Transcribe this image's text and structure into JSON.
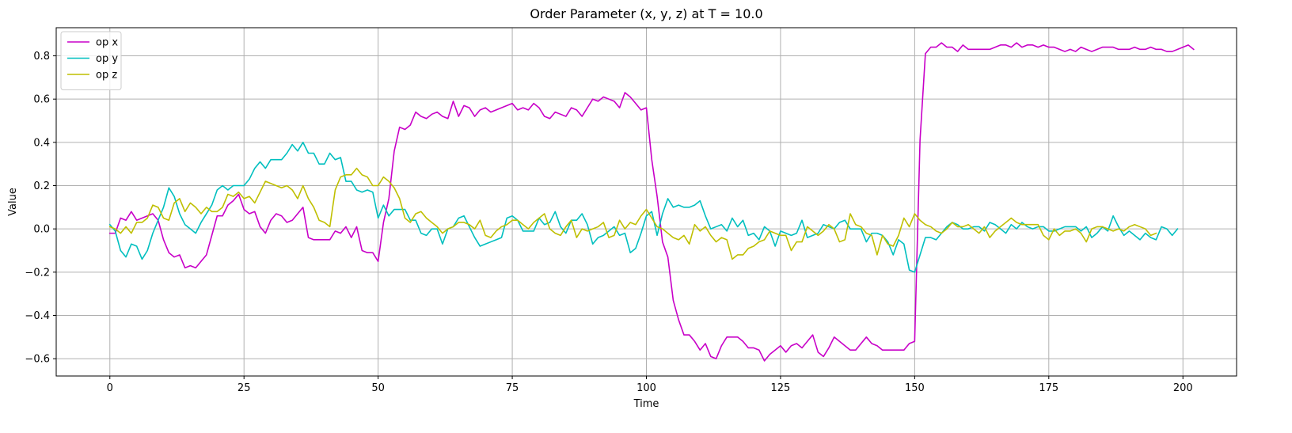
{
  "chart_data": {
    "type": "line",
    "title": "Order Parameter (x, y, z) at T = 10.0",
    "xlabel": "Time",
    "ylabel": "Value",
    "xlim": [
      -10,
      210
    ],
    "ylim": [
      -0.68,
      0.93
    ],
    "xticks": [
      0,
      25,
      50,
      75,
      100,
      125,
      150,
      175,
      200
    ],
    "yticks": [
      -0.6,
      -0.4,
      -0.2,
      0.0,
      0.2,
      0.4,
      0.6,
      0.8
    ],
    "ytick_labels": [
      "−0.6",
      "−0.4",
      "−0.2",
      "0.0",
      "0.2",
      "0.4",
      "0.6",
      "0.8"
    ],
    "grid": true,
    "legend_position": "top-left",
    "series": [
      {
        "name": "op x",
        "color": "#c800c8",
        "values": [
          -0.02,
          -0.02,
          0.05,
          0.04,
          0.08,
          0.04,
          0.05,
          0.06,
          0.07,
          0.04,
          -0.05,
          -0.11,
          -0.13,
          -0.12,
          -0.18,
          -0.17,
          -0.18,
          -0.15,
          -0.12,
          -0.03,
          0.06,
          0.06,
          0.11,
          0.13,
          0.16,
          0.09,
          0.07,
          0.08,
          0.01,
          -0.02,
          0.04,
          0.07,
          0.06,
          0.03,
          0.04,
          0.07,
          0.1,
          -0.04,
          -0.05,
          -0.05,
          -0.05,
          -0.05,
          -0.01,
          -0.02,
          0.01,
          -0.04,
          0.01,
          -0.1,
          -0.11,
          -0.11,
          -0.15,
          0.03,
          0.14,
          0.36,
          0.47,
          0.46,
          0.48,
          0.54,
          0.52,
          0.51,
          0.53,
          0.54,
          0.52,
          0.51,
          0.59,
          0.52,
          0.57,
          0.56,
          0.52,
          0.55,
          0.56,
          0.54,
          0.55,
          0.56,
          0.57,
          0.58,
          0.55,
          0.56,
          0.55,
          0.58,
          0.56,
          0.52,
          0.51,
          0.54,
          0.53,
          0.52,
          0.56,
          0.55,
          0.52,
          0.56,
          0.6,
          0.59,
          0.61,
          0.6,
          0.59,
          0.56,
          0.63,
          0.61,
          0.58,
          0.55,
          0.56,
          0.32,
          0.15,
          -0.06,
          -0.13,
          -0.33,
          -0.42,
          -0.49,
          -0.49,
          -0.52,
          -0.56,
          -0.53,
          -0.59,
          -0.6,
          -0.54,
          -0.5,
          -0.5,
          -0.5,
          -0.52,
          -0.55,
          -0.55,
          -0.56,
          -0.61,
          -0.58,
          -0.56,
          -0.54,
          -0.57,
          -0.54,
          -0.53,
          -0.55,
          -0.52,
          -0.49,
          -0.57,
          -0.59,
          -0.55,
          -0.5,
          -0.52,
          -0.54,
          -0.56,
          -0.56,
          -0.53,
          -0.5,
          -0.53,
          -0.54,
          -0.56,
          -0.56,
          -0.56,
          -0.56,
          -0.56,
          -0.53,
          -0.52,
          0.41,
          0.81,
          0.84,
          0.84,
          0.86,
          0.84,
          0.84,
          0.82,
          0.85,
          0.83,
          0.83,
          0.83,
          0.83,
          0.83,
          0.84,
          0.85,
          0.85,
          0.84,
          0.86,
          0.84,
          0.85,
          0.85,
          0.84,
          0.85,
          0.84,
          0.84,
          0.83,
          0.82,
          0.83,
          0.82,
          0.84,
          0.83,
          0.82,
          0.83,
          0.84,
          0.84,
          0.84,
          0.83,
          0.83,
          0.83,
          0.84,
          0.83,
          0.83,
          0.84,
          0.83,
          0.83,
          0.82,
          0.82,
          0.83,
          0.84,
          0.85,
          0.83
        ]
      },
      {
        "name": "op y",
        "color": "#00bfbf",
        "values": [
          0.02,
          -0.01,
          -0.1,
          -0.13,
          -0.07,
          -0.08,
          -0.14,
          -0.1,
          -0.02,
          0.04,
          0.1,
          0.19,
          0.15,
          0.07,
          0.02,
          0.0,
          -0.02,
          0.03,
          0.07,
          0.11,
          0.18,
          0.2,
          0.18,
          0.2,
          0.2,
          0.2,
          0.23,
          0.28,
          0.31,
          0.28,
          0.32,
          0.32,
          0.32,
          0.35,
          0.39,
          0.36,
          0.4,
          0.35,
          0.35,
          0.3,
          0.3,
          0.35,
          0.32,
          0.33,
          0.22,
          0.22,
          0.18,
          0.17,
          0.18,
          0.17,
          0.05,
          0.11,
          0.06,
          0.09,
          0.09,
          0.09,
          0.04,
          0.04,
          -0.02,
          -0.03,
          0.0,
          0.0,
          -0.07,
          0.0,
          0.01,
          0.05,
          0.06,
          0.01,
          -0.04,
          -0.08,
          -0.07,
          -0.06,
          -0.05,
          -0.04,
          0.05,
          0.06,
          0.04,
          -0.01,
          -0.01,
          -0.01,
          0.05,
          0.02,
          0.03,
          0.08,
          0.01,
          -0.02,
          0.04,
          0.04,
          0.07,
          0.02,
          -0.07,
          -0.04,
          -0.03,
          -0.01,
          0.01,
          -0.03,
          -0.02,
          -0.11,
          -0.09,
          -0.02,
          0.06,
          0.08,
          -0.03,
          0.07,
          0.14,
          0.1,
          0.11,
          0.1,
          0.1,
          0.11,
          0.13,
          0.06,
          0.0,
          0.01,
          0.02,
          -0.01,
          0.05,
          0.01,
          0.04,
          -0.03,
          -0.02,
          -0.05,
          0.01,
          -0.01,
          -0.08,
          -0.01,
          -0.02,
          -0.03,
          -0.02,
          0.04,
          -0.04,
          -0.03,
          -0.02,
          0.02,
          0.01,
          0.0,
          0.03,
          0.04,
          0.0,
          0.0,
          0.0,
          -0.06,
          -0.02,
          -0.02,
          -0.03,
          -0.06,
          -0.12,
          -0.05,
          -0.07,
          -0.19,
          -0.2,
          -0.12,
          -0.04,
          -0.04,
          -0.05,
          -0.02,
          0.01,
          0.03,
          0.02,
          0.0,
          0.0,
          0.01,
          0.01,
          -0.01,
          0.03,
          0.02,
          0.0,
          -0.02,
          0.02,
          0.0,
          0.03,
          0.01,
          0.0,
          0.01,
          0.01,
          -0.01,
          -0.01,
          0.0,
          0.01,
          0.01,
          0.01,
          -0.01,
          0.01,
          -0.04,
          -0.02,
          0.01,
          -0.01,
          0.06,
          0.01,
          -0.03,
          -0.01,
          -0.03,
          -0.05,
          -0.02,
          -0.04,
          -0.05,
          0.01,
          0.0,
          -0.03,
          0.0
        ]
      },
      {
        "name": "op z",
        "color": "#bfbf00",
        "values": [
          0.01,
          0.0,
          -0.02,
          0.01,
          -0.02,
          0.03,
          0.03,
          0.05,
          0.11,
          0.1,
          0.05,
          0.04,
          0.12,
          0.14,
          0.08,
          0.12,
          0.1,
          0.07,
          0.1,
          0.08,
          0.08,
          0.1,
          0.16,
          0.15,
          0.17,
          0.14,
          0.15,
          0.12,
          0.17,
          0.22,
          0.21,
          0.2,
          0.19,
          0.2,
          0.18,
          0.14,
          0.2,
          0.14,
          0.1,
          0.04,
          0.03,
          0.01,
          0.18,
          0.24,
          0.25,
          0.25,
          0.28,
          0.25,
          0.24,
          0.2,
          0.2,
          0.24,
          0.22,
          0.19,
          0.14,
          0.05,
          0.03,
          0.07,
          0.08,
          0.05,
          0.03,
          0.01,
          -0.02,
          0.0,
          0.01,
          0.03,
          0.03,
          0.02,
          0.0,
          0.04,
          -0.03,
          -0.04,
          -0.01,
          0.01,
          0.02,
          0.04,
          0.04,
          0.02,
          0.0,
          0.03,
          0.05,
          0.07,
          0.0,
          -0.02,
          -0.03,
          0.01,
          0.04,
          -0.04,
          0.0,
          -0.01,
          0.0,
          0.01,
          0.03,
          -0.04,
          -0.03,
          0.04,
          0.0,
          0.03,
          0.02,
          0.06,
          0.09,
          0.05,
          0.01,
          0.0,
          -0.02,
          -0.04,
          -0.05,
          -0.03,
          -0.07,
          0.02,
          -0.01,
          0.01,
          -0.03,
          -0.06,
          -0.04,
          -0.05,
          -0.14,
          -0.12,
          -0.12,
          -0.09,
          -0.08,
          -0.06,
          -0.05,
          -0.01,
          -0.02,
          -0.03,
          -0.03,
          -0.1,
          -0.06,
          -0.06,
          0.01,
          -0.01,
          -0.03,
          -0.01,
          0.02,
          0.0,
          -0.06,
          -0.05,
          0.07,
          0.02,
          0.01,
          -0.02,
          -0.03,
          -0.12,
          -0.03,
          -0.07,
          -0.08,
          -0.03,
          0.05,
          0.01,
          0.07,
          0.04,
          0.02,
          0.01,
          -0.01,
          -0.02,
          0.0,
          0.03,
          0.01,
          0.01,
          0.02,
          0.0,
          -0.02,
          0.01,
          -0.04,
          -0.01,
          0.01,
          0.03,
          0.05,
          0.03,
          0.02,
          0.02,
          0.02,
          0.02,
          -0.03,
          -0.05,
          0.0,
          -0.03,
          -0.01,
          -0.01,
          0.0,
          -0.02,
          -0.06,
          0.0,
          0.01,
          0.01,
          0.0,
          -0.01,
          0.0,
          -0.01,
          0.01,
          0.02,
          0.01,
          0.0,
          -0.03,
          -0.02
        ]
      }
    ]
  }
}
